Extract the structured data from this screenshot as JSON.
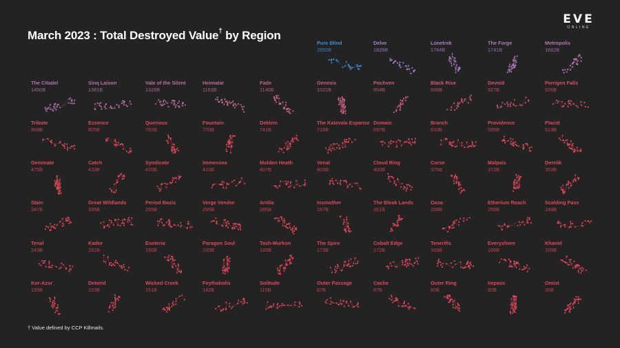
{
  "header": {
    "title_main": "March 2023 : Total Destroyed Value",
    "title_dagger": "†",
    "title_suffix": " by Region"
  },
  "logo": {
    "line1": "EVE",
    "line2": "ONLINE"
  },
  "footnote": "† Value defined by CCP Killmails.",
  "colors": {
    "background": "#232323",
    "top": "#3d8fd8",
    "mid": "#a97ecf",
    "low": "#e2475a"
  },
  "chart_data": {
    "type": "small-multiples map",
    "title": "March 2023 : Total Destroyed Value† by Region",
    "unit": "B",
    "regions": [
      {
        "name": "Pure Blind",
        "value": "2850B"
      },
      {
        "name": "Delve",
        "value": "1828B"
      },
      {
        "name": "Lonetrek",
        "value": "1764B"
      },
      {
        "name": "The Forge",
        "value": "1741B"
      },
      {
        "name": "Metropolis",
        "value": "1682B"
      },
      {
        "name": "The Citadel",
        "value": "1450B"
      },
      {
        "name": "Sinq Laison",
        "value": "1381B"
      },
      {
        "name": "Vale of the Silent",
        "value": "1328B"
      },
      {
        "name": "Heimatar",
        "value": "1163B"
      },
      {
        "name": "Fade",
        "value": "1140B"
      },
      {
        "name": "Genesis",
        "value": "1022B"
      },
      {
        "name": "Pochven",
        "value": "954B"
      },
      {
        "name": "Black Rise",
        "value": "938B"
      },
      {
        "name": "Devoid",
        "value": "927B"
      },
      {
        "name": "Perrigen Falls",
        "value": "926B"
      },
      {
        "name": "Tribute",
        "value": "868B"
      },
      {
        "name": "Essence",
        "value": "805B"
      },
      {
        "name": "Querious",
        "value": "792B"
      },
      {
        "name": "Fountain",
        "value": "770B"
      },
      {
        "name": "Deklein",
        "value": "741B"
      },
      {
        "name": "The Kalevala Expanse",
        "value": "716B"
      },
      {
        "name": "Domain",
        "value": "697B"
      },
      {
        "name": "Branch",
        "value": "633B"
      },
      {
        "name": "Providence",
        "value": "595B"
      },
      {
        "name": "Placid",
        "value": "513B"
      },
      {
        "name": "Geminate",
        "value": "475B"
      },
      {
        "name": "Catch",
        "value": "433B"
      },
      {
        "name": "Syndicate",
        "value": "420B"
      },
      {
        "name": "Immensea",
        "value": "410B"
      },
      {
        "name": "Molden Heath",
        "value": "407B"
      },
      {
        "name": "Venal",
        "value": "403B"
      },
      {
        "name": "Cloud Ring",
        "value": "400B"
      },
      {
        "name": "Curse",
        "value": "375B"
      },
      {
        "name": "Malpais",
        "value": "372B"
      },
      {
        "name": "Derelik",
        "value": "353B"
      },
      {
        "name": "Stain",
        "value": "347B"
      },
      {
        "name": "Great Wildlands",
        "value": "335B"
      },
      {
        "name": "Period Basis",
        "value": "295B"
      },
      {
        "name": "Verge Vendor",
        "value": "295B"
      },
      {
        "name": "Aridia",
        "value": "285B"
      },
      {
        "name": "Insmother",
        "value": "267B"
      },
      {
        "name": "The Bleak Lands",
        "value": "261B"
      },
      {
        "name": "Oasa",
        "value": "258B"
      },
      {
        "name": "Etherium Reach",
        "value": "255B"
      },
      {
        "name": "Scalding Pass",
        "value": "249B"
      },
      {
        "name": "Tenal",
        "value": "243B"
      },
      {
        "name": "Kador",
        "value": "191B"
      },
      {
        "name": "Esoteria",
        "value": "190B"
      },
      {
        "name": "Paragon Soul",
        "value": "190B"
      },
      {
        "name": "Tash-Murkon",
        "value": "186B"
      },
      {
        "name": "The Spire",
        "value": "173B"
      },
      {
        "name": "Cobalt Edge",
        "value": "172B"
      },
      {
        "name": "Tenerifis",
        "value": "169B"
      },
      {
        "name": "Everyshore",
        "value": "166B"
      },
      {
        "name": "Khanid",
        "value": "159B"
      },
      {
        "name": "Kor-Azor",
        "value": "155B"
      },
      {
        "name": "Detorid",
        "value": "153B"
      },
      {
        "name": "Wicked Creek",
        "value": "151B"
      },
      {
        "name": "Feythabolis",
        "value": "142B"
      },
      {
        "name": "Solitude",
        "value": "115B"
      },
      {
        "name": "Outer Passage",
        "value": "87B"
      },
      {
        "name": "Cache",
        "value": "67B"
      },
      {
        "name": "Outer Ring",
        "value": "60B"
      },
      {
        "name": "Impass",
        "value": "60B"
      },
      {
        "name": "Omist",
        "value": "35B"
      }
    ]
  }
}
